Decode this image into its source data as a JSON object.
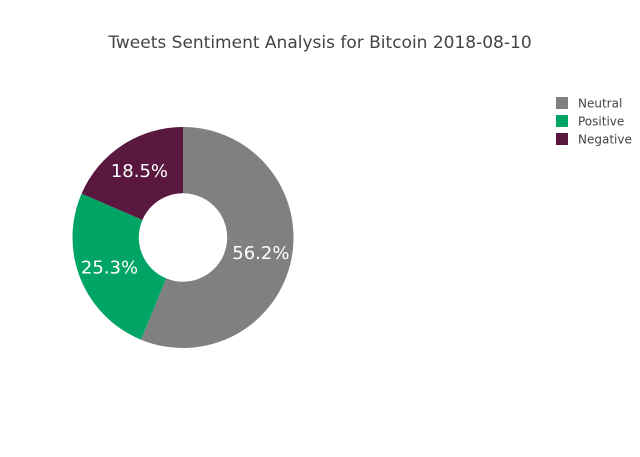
{
  "chart_data": {
    "type": "pie",
    "title": "Tweets Sentiment Analysis for Bitcoin 2018-08-10",
    "hole": 0.4,
    "slices": [
      {
        "label": "Neutral",
        "value": 56.2,
        "display": "56.2%",
        "color": "#808080"
      },
      {
        "label": "Positive",
        "value": 25.3,
        "display": "25.3%",
        "color": "#00a465"
      },
      {
        "label": "Negative",
        "value": 18.5,
        "display": "18.5%",
        "color": "#5a1840"
      }
    ],
    "legend": {
      "position": "top-right",
      "items": [
        "Neutral",
        "Positive",
        "Negative"
      ]
    }
  }
}
